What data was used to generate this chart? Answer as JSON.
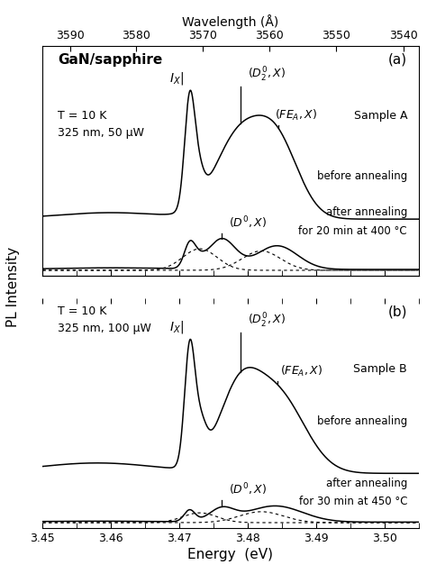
{
  "title": "Wavelength (Å)",
  "xlabel": "Energy  (eV)",
  "ylabel": "PL Intensity",
  "energy_min": 3.45,
  "energy_max": 3.505,
  "panel_a_label": "(a)",
  "panel_b_label": "(b)",
  "condition_a": "T = 10 K\n325 nm, 50 μW",
  "condition_b": "T = 10 K\n325 nm, 100 μW",
  "gansapphire": "GaN/sapphire",
  "before_label": "before annealing",
  "after_a_label": "after annealing\nfor 20 min at 400 °C",
  "after_b_label": "after annealing\nfor 30 min at 450 °C",
  "wavelength_ticks": [
    3590,
    3580,
    3570,
    3560,
    3550,
    3540
  ],
  "energy_ticks": [
    3.45,
    3.46,
    3.47,
    3.48,
    3.49,
    3.5
  ]
}
